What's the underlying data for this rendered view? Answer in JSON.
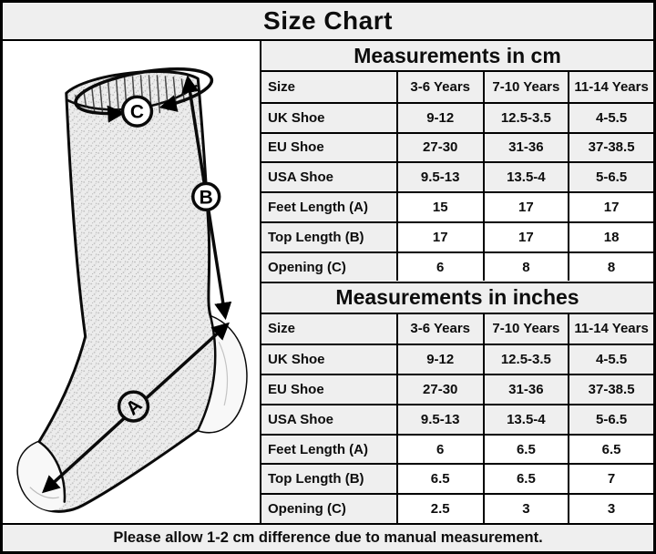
{
  "title": "Size Chart",
  "footer": "Please allow 1-2 cm difference due to manual measurement.",
  "colors": {
    "shade": "#efefef",
    "border": "#000000",
    "paper": "#ffffff"
  },
  "diagram": {
    "name": "sock-measurement-diagram",
    "labels": {
      "a": "A",
      "b": "B",
      "c": "C"
    },
    "legend": {
      "a_means": "Feet Length",
      "b_means": "Top Length",
      "c_means": "Opening"
    }
  },
  "tables": [
    {
      "title": "Measurements in cm",
      "columns": [
        "Size",
        "3-6 Years",
        "7-10 Years",
        "11-14 Years"
      ],
      "rows": [
        [
          "UK Shoe",
          "9-12",
          "12.5-3.5",
          "4-5.5"
        ],
        [
          "EU Shoe",
          "27-30",
          "31-36",
          "37-38.5"
        ],
        [
          "USA Shoe",
          "9.5-13",
          "13.5-4",
          "5-6.5"
        ],
        [
          "Feet Length (A)",
          "15",
          "17",
          "17"
        ],
        [
          "Top Length (B)",
          "17",
          "17",
          "18"
        ],
        [
          "Opening (C)",
          "6",
          "8",
          "8"
        ]
      ]
    },
    {
      "title": "Measurements in inches",
      "columns": [
        "Size",
        "3-6 Years",
        "7-10 Years",
        "11-14 Years"
      ],
      "rows": [
        [
          "UK Shoe",
          "9-12",
          "12.5-3.5",
          "4-5.5"
        ],
        [
          "EU Shoe",
          "27-30",
          "31-36",
          "37-38.5"
        ],
        [
          "USA Shoe",
          "9.5-13",
          "13.5-4",
          "5-6.5"
        ],
        [
          "Feet Length (A)",
          "6",
          "6.5",
          "6.5"
        ],
        [
          "Top Length (B)",
          "6.5",
          "6.5",
          "7"
        ],
        [
          "Opening (C)",
          "2.5",
          "3",
          "3"
        ]
      ]
    }
  ]
}
